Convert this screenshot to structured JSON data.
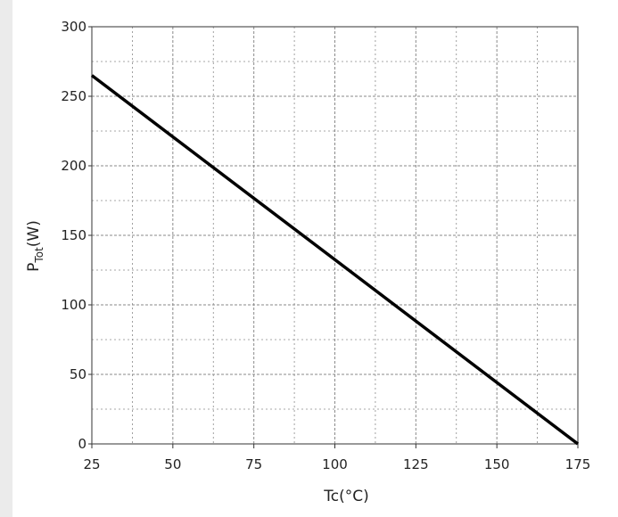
{
  "chart_data": {
    "type": "line",
    "title": "",
    "xlabel": "Tc(°C)",
    "ylabel": {
      "main": "P",
      "sub": "Tot",
      "unit": "(W)"
    },
    "xlim": [
      25,
      175
    ],
    "ylim": [
      0,
      300
    ],
    "x_ticks": [
      25,
      50,
      75,
      100,
      125,
      150,
      175
    ],
    "y_ticks": [
      0,
      50,
      100,
      150,
      200,
      250,
      300
    ],
    "x_tick_labels": [
      "25",
      "50",
      "75",
      "100",
      "125",
      "150",
      "175"
    ],
    "y_tick_labels": [
      "0",
      "50",
      "100",
      "150",
      "200",
      "250",
      "300"
    ],
    "grid": true,
    "series": [
      {
        "x": [
          25,
          175
        ],
        "y": [
          265,
          0
        ]
      }
    ],
    "colors": {
      "line": "#000000",
      "grid": "#8a8a8a",
      "background": "#ffffff"
    }
  }
}
